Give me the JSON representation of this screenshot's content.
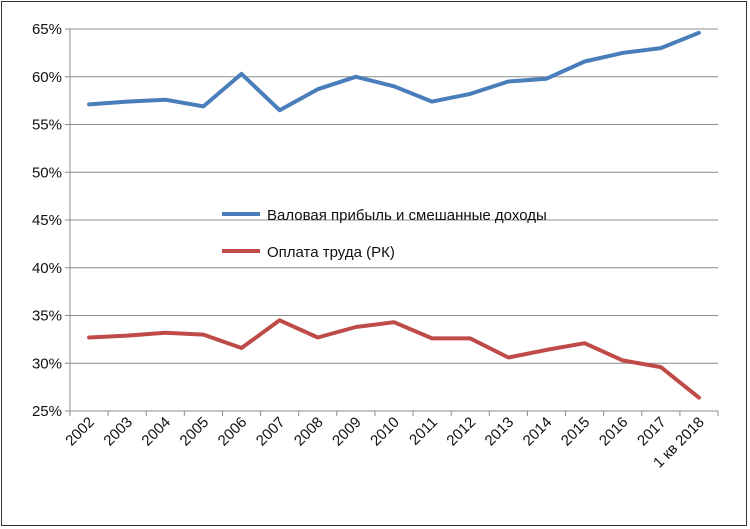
{
  "chart_data": {
    "type": "line",
    "title": "",
    "xlabel": "",
    "ylabel": "",
    "categories": [
      "2002",
      "2003",
      "2004",
      "2005",
      "2006",
      "2007",
      "2008",
      "2009",
      "2010",
      "2011",
      "2012",
      "2013",
      "2014",
      "2015",
      "2016",
      "2017",
      "1 кв 2018"
    ],
    "ylim": [
      25,
      65
    ],
    "yticks": [
      "25%",
      "30%",
      "35%",
      "40%",
      "45%",
      "50%",
      "55%",
      "60%",
      "65%"
    ],
    "grid": true,
    "legend_position": "center",
    "series": [
      {
        "name": "Валовая прибыль и смешанные доходы",
        "color": "#4a7ebb",
        "values": [
          57.1,
          57.4,
          57.6,
          56.9,
          60.3,
          56.5,
          58.7,
          60.0,
          59.0,
          57.4,
          58.2,
          59.5,
          59.8,
          61.6,
          62.5,
          63.0,
          64.6
        ]
      },
      {
        "name": "Оплата труда (РК)",
        "color": "#be4b48",
        "values": [
          32.7,
          32.9,
          33.2,
          33.0,
          31.6,
          34.5,
          32.7,
          33.8,
          34.3,
          32.6,
          32.6,
          30.6,
          31.4,
          32.1,
          30.3,
          29.6,
          26.4
        ]
      }
    ]
  }
}
